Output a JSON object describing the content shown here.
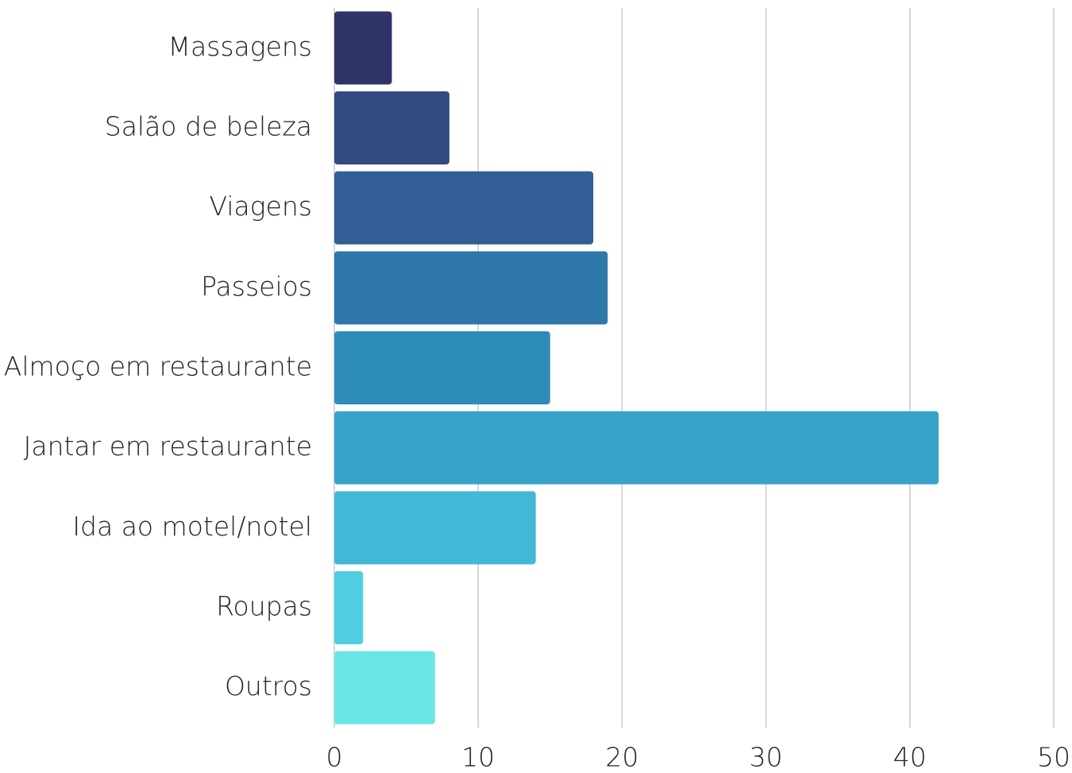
{
  "chart_data": {
    "type": "bar",
    "orientation": "horizontal",
    "categories": [
      "Massagens",
      "Salão de beleza",
      "Viagens",
      "Passeios",
      "Almoço em restaurante",
      "Jantar em restaurante",
      "Ida ao motel/notel",
      "Roupas",
      "Outros"
    ],
    "values": [
      4,
      8,
      18,
      19,
      15,
      42,
      14,
      2,
      7
    ],
    "colors": [
      "#2f3468",
      "#324a80",
      "#305e95",
      "#2e77ab",
      "#2e8cbb",
      "#37a3cb",
      "#43b8d6",
      "#50cde0",
      "#6ae5e8"
    ],
    "xlim": [
      0,
      50
    ],
    "xticks": [
      0,
      10,
      20,
      30,
      40,
      50
    ],
    "grid": true
  }
}
